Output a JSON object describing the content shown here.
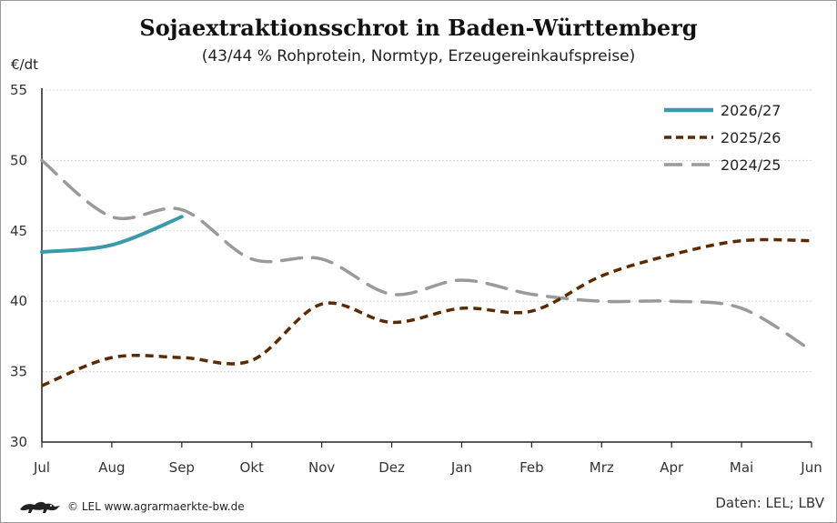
{
  "chart_data": {
    "type": "line",
    "title": "Sojaextraktionsschrot in Baden-Württemberg",
    "subtitle": "(43/44 % Rohprotein, Normtyp, Erzeugereinkaufspreise)",
    "ylabel": "€/dt",
    "categories": [
      "Jul",
      "Aug",
      "Sep",
      "Okt",
      "Nov",
      "Dez",
      "Jan",
      "Feb",
      "Mrz",
      "Apr",
      "Mai",
      "Jun"
    ],
    "ylim": [
      30,
      55
    ],
    "yticks": [
      30,
      35,
      40,
      45,
      50,
      55
    ],
    "grid": true,
    "legend_position": "top-right",
    "series": [
      {
        "name": "2026/27",
        "color": "#3a9aaa",
        "dash": "solid",
        "values": [
          43.5,
          44.0,
          46.0,
          null,
          null,
          null,
          null,
          null,
          null,
          null,
          null,
          null
        ]
      },
      {
        "name": "2025/26",
        "color": "#5c2a00",
        "dash": "dotted",
        "values": [
          34.0,
          36.0,
          36.0,
          35.8,
          39.8,
          38.5,
          39.5,
          39.3,
          41.8,
          43.3,
          44.3,
          44.3
        ]
      },
      {
        "name": "2024/25",
        "color": "#9a9a9a",
        "dash": "dashed",
        "values": [
          50.0,
          46.0,
          46.5,
          43.0,
          43.0,
          40.5,
          41.5,
          40.5,
          40.0,
          40.0,
          39.5,
          36.5
        ]
      }
    ]
  },
  "footer": {
    "logo_icon": "lion-icon",
    "copyright": "© LEL www.agrarmaerkte-bw.de",
    "source": "Daten: LEL; LBV"
  }
}
